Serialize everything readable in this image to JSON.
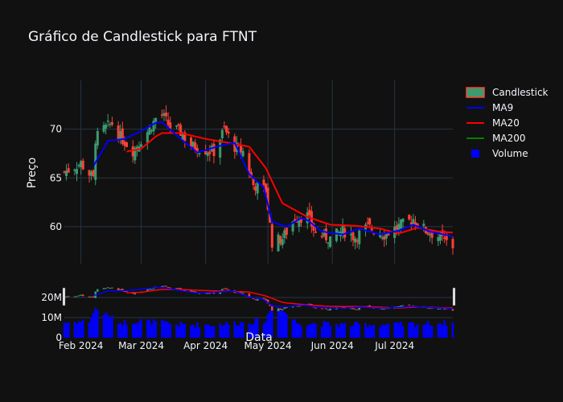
{
  "chart_data": {
    "type": "candlestick",
    "title": "Gráfico de Candlestick para FTNT",
    "ylabel": "Preço",
    "xlabel": "Data",
    "x_ticks": [
      "Feb 2024",
      "Mar 2024",
      "Apr 2024",
      "May 2024",
      "Jun 2024",
      "Jul 2024"
    ],
    "y_ticks": [
      "60",
      "65",
      "70"
    ],
    "volume_ticks": [
      "0",
      "10M",
      "20M"
    ],
    "ylim": [
      56.2,
      75.0
    ],
    "volume_ylim": [
      0,
      28000000
    ],
    "colors": {
      "background": "#111111",
      "grid": "#283442",
      "increasing": "#3d9970",
      "decreasing": "#ff4136",
      "ma9": "#0000ff",
      "ma20": "#ff0000",
      "ma200": "#008000",
      "volume": "#0000ff"
    },
    "legend": {
      "placement": "right",
      "items": [
        {
          "name": "Candlestick",
          "kind": "candle"
        },
        {
          "name": "MA9",
          "kind": "line",
          "color": "#0000ff"
        },
        {
          "name": "MA20",
          "kind": "line",
          "color": "#ff0000"
        },
        {
          "name": "MA200",
          "kind": "line",
          "color": "#008000"
        },
        {
          "name": "Volume",
          "kind": "square",
          "color": "#0000ff"
        }
      ]
    },
    "x_start": "2024-01-24",
    "x_end": "2024-07-29",
    "close_keyframes": [
      [
        "2024-01-24",
        65.6
      ],
      [
        "2024-02-01",
        66.5
      ],
      [
        "2024-02-07",
        64.9
      ],
      [
        "2024-02-08",
        69.0
      ],
      [
        "2024-02-12",
        70.0
      ],
      [
        "2024-02-16",
        70.6
      ],
      [
        "2024-02-20",
        69.2
      ],
      [
        "2024-02-26",
        67.8
      ],
      [
        "2024-03-05",
        70.0
      ],
      [
        "2024-03-10",
        71.8
      ],
      [
        "2024-03-15",
        70.2
      ],
      [
        "2024-03-20",
        69.7
      ],
      [
        "2024-03-25",
        68.3
      ],
      [
        "2024-03-29",
        68.0
      ],
      [
        "2024-04-05",
        67.7
      ],
      [
        "2024-04-10",
        70.0
      ],
      [
        "2024-04-15",
        68.2
      ],
      [
        "2024-04-19",
        67.7
      ],
      [
        "2024-04-24",
        64.3
      ],
      [
        "2024-04-30",
        63.8
      ],
      [
        "2024-05-03",
        58.4
      ],
      [
        "2024-05-08",
        58.8
      ],
      [
        "2024-05-14",
        60.9
      ],
      [
        "2024-05-20",
        61.1
      ],
      [
        "2024-05-24",
        59.3
      ],
      [
        "2024-05-31",
        58.8
      ],
      [
        "2024-06-06",
        59.6
      ],
      [
        "2024-06-12",
        58.9
      ],
      [
        "2024-06-18",
        60.0
      ],
      [
        "2024-06-26",
        59.2
      ],
      [
        "2024-07-02",
        59.9
      ],
      [
        "2024-07-10",
        60.8
      ],
      [
        "2024-07-16",
        59.6
      ],
      [
        "2024-07-22",
        59.0
      ],
      [
        "2024-07-29",
        58.0
      ]
    ],
    "ma9_keyframes": [
      [
        "2024-02-07",
        66.2
      ],
      [
        "2024-02-14",
        68.8
      ],
      [
        "2024-02-22",
        69.0
      ],
      [
        "2024-03-01",
        69.8
      ],
      [
        "2024-03-10",
        70.9
      ],
      [
        "2024-03-20",
        69.0
      ],
      [
        "2024-03-28",
        67.6
      ],
      [
        "2024-04-08",
        68.3
      ],
      [
        "2024-04-15",
        68.6
      ],
      [
        "2024-04-22",
        65.4
      ],
      [
        "2024-04-29",
        64.0
      ],
      [
        "2024-05-03",
        60.5
      ],
      [
        "2024-05-10",
        60.0
      ],
      [
        "2024-05-18",
        61.0
      ],
      [
        "2024-05-27",
        59.5
      ],
      [
        "2024-06-06",
        59.2
      ],
      [
        "2024-06-14",
        59.8
      ],
      [
        "2024-06-24",
        59.2
      ],
      [
        "2024-07-03",
        59.6
      ],
      [
        "2024-07-10",
        60.2
      ],
      [
        "2024-07-18",
        59.5
      ],
      [
        "2024-07-29",
        59.0
      ]
    ],
    "ma20_keyframes": [
      [
        "2024-02-23",
        67.7
      ],
      [
        "2024-03-01",
        68.0
      ],
      [
        "2024-03-10",
        69.6
      ],
      [
        "2024-03-20",
        69.6
      ],
      [
        "2024-04-01",
        69.0
      ],
      [
        "2024-04-12",
        68.6
      ],
      [
        "2024-04-22",
        68.2
      ],
      [
        "2024-04-30",
        66.0
      ],
      [
        "2024-05-08",
        62.4
      ],
      [
        "2024-05-20",
        61.0
      ],
      [
        "2024-05-31",
        60.2
      ],
      [
        "2024-06-12",
        60.1
      ],
      [
        "2024-06-24",
        59.8
      ],
      [
        "2024-07-03",
        59.3
      ],
      [
        "2024-07-12",
        59.9
      ],
      [
        "2024-07-22",
        59.5
      ],
      [
        "2024-07-29",
        59.4
      ]
    ],
    "volume_keyframes": [
      [
        "2024-01-24",
        6
      ],
      [
        "2024-02-05",
        7
      ],
      [
        "2024-02-08",
        13
      ],
      [
        "2024-02-20",
        6
      ],
      [
        "2024-03-01",
        7
      ],
      [
        "2024-03-20",
        5
      ],
      [
        "2024-04-05",
        5
      ],
      [
        "2024-04-30",
        7
      ],
      [
        "2024-05-03",
        15
      ],
      [
        "2024-05-06",
        14
      ],
      [
        "2024-05-15",
        6
      ],
      [
        "2024-06-05",
        5
      ],
      [
        "2024-07-01",
        5
      ],
      [
        "2024-07-29",
        6
      ]
    ]
  }
}
